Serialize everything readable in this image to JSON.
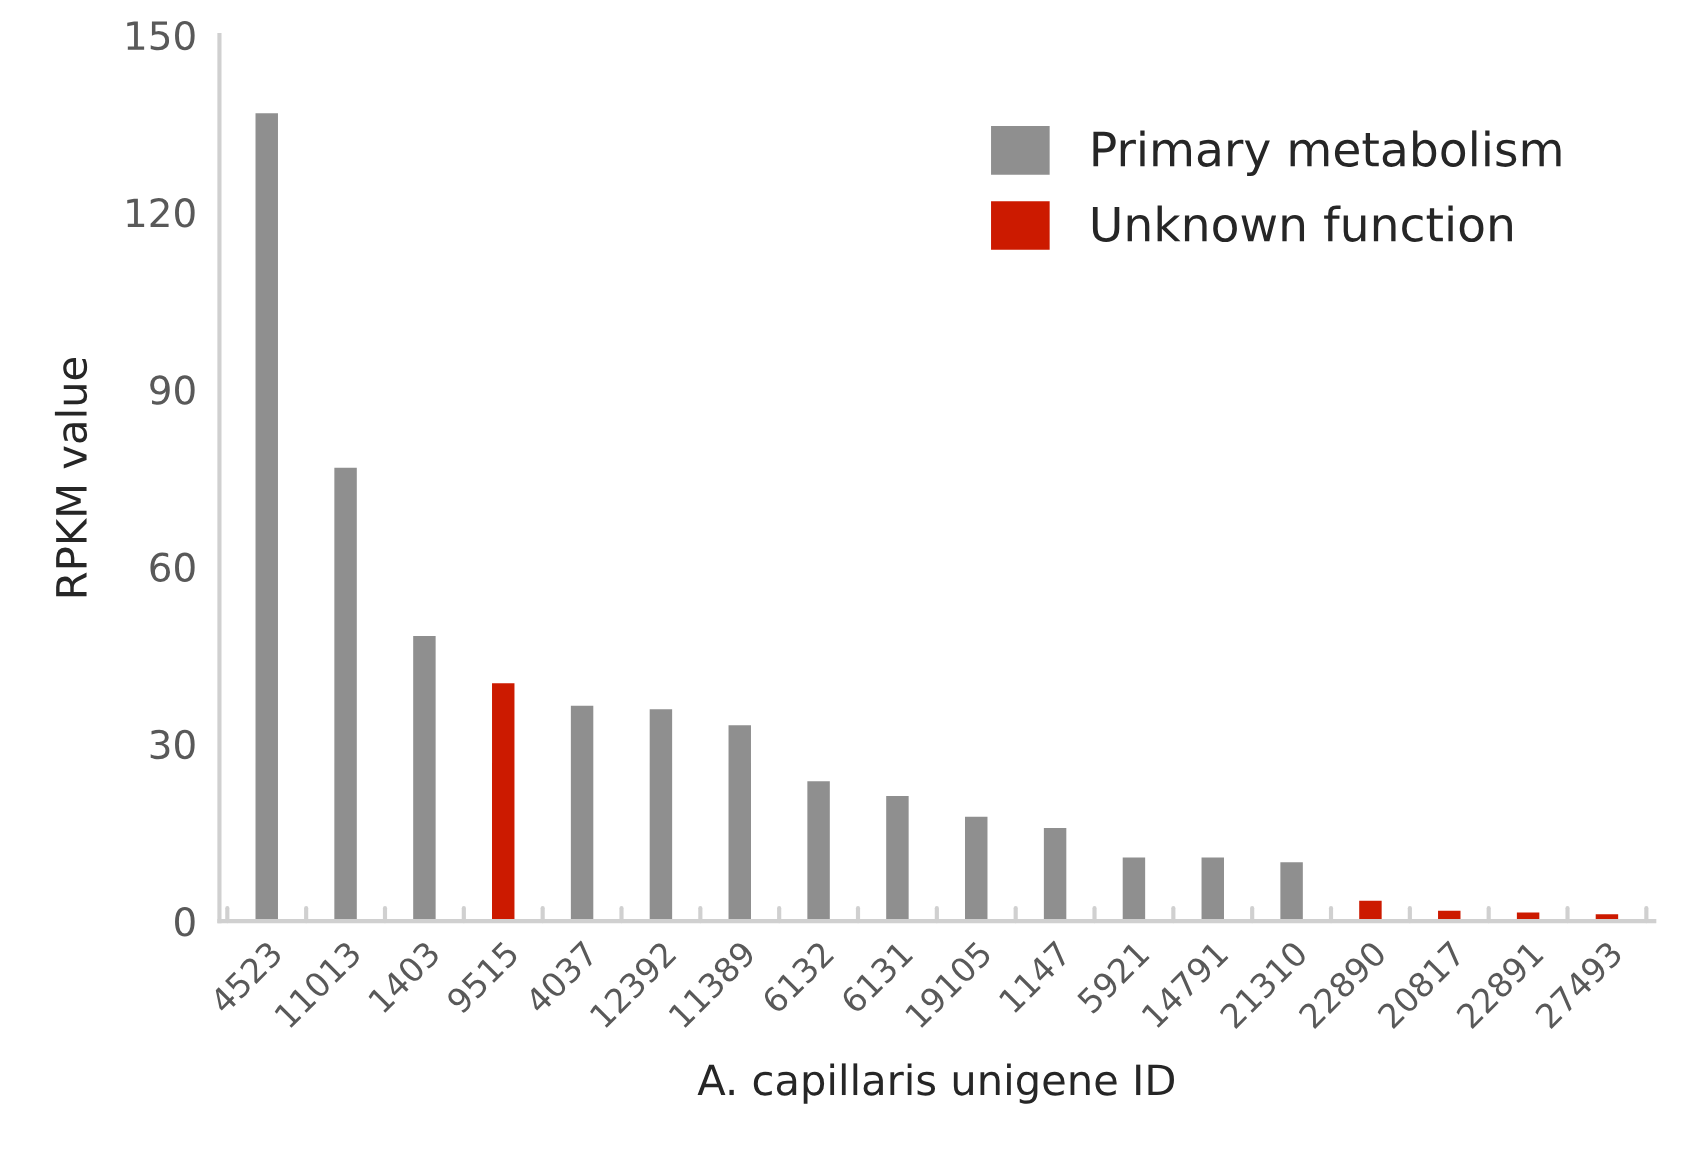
{
  "chart_data": {
    "type": "bar",
    "stacked": true,
    "xlabel": "A. capillaris unigene ID",
    "ylabel": "RPKM value",
    "categories": [
      "4523",
      "11013",
      "1403",
      "9515",
      "4037",
      "12392",
      "11389",
      "6132",
      "6131",
      "19105",
      "1147",
      "5921",
      "14791",
      "21310",
      "22890",
      "20817",
      "22891",
      "27493"
    ],
    "series": [
      {
        "name": "Primary metabolism",
        "color": "#8f8f8f",
        "values": [
          137,
          77,
          48.5,
          null,
          36.7,
          36.1,
          33.4,
          23.9,
          21.4,
          17.9,
          16,
          11,
          11,
          10.2,
          null,
          null,
          null,
          null
        ]
      },
      {
        "name": "Unknown function",
        "color": "#cc1a00",
        "values": [
          null,
          null,
          null,
          40.5,
          null,
          null,
          null,
          null,
          null,
          null,
          null,
          null,
          null,
          null,
          3.7,
          2,
          1.7,
          1.4
        ]
      }
    ],
    "ylim": [
      0,
      150
    ],
    "yticks": [
      0,
      30,
      60,
      90,
      120,
      150
    ],
    "grid": false,
    "legend": "top right"
  }
}
